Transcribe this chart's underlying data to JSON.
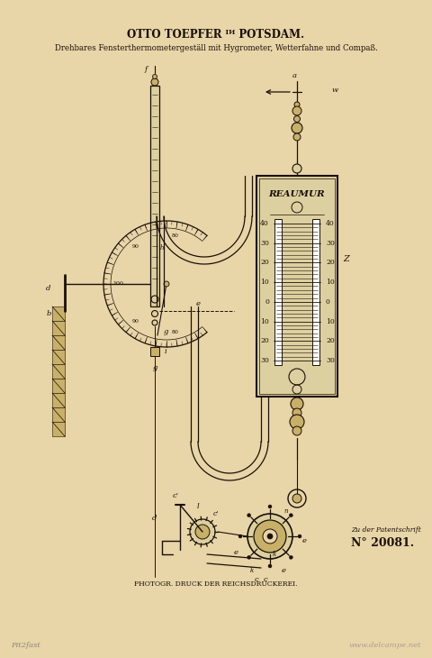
{
  "bg_color": "#e8d5a8",
  "paper_color": "#e8d5a8",
  "line_color": "#1a1008",
  "title1": "OTTO TOEPFER ᴵᴻ POTSDAM.",
  "title1_plain": "OTTO TOEPFER in POTSDAM.",
  "title2": "Drehbares Fensterthermometergeställ mit Hygrometer, Wetterfahne und Compaß.",
  "footer1": "PHOTOGR. DRUCK DER REICHSDRUCKEREI.",
  "footer2": "Zu der Patentschrift",
  "patent_no": "N° 20081.",
  "watermark_left": "Pit2fast",
  "watermark_right": "www.delcampe.net"
}
